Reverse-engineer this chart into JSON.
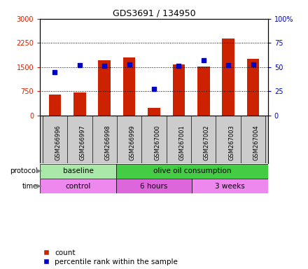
{
  "title": "GDS3691 / 134950",
  "samples": [
    "GSM266996",
    "GSM266997",
    "GSM266998",
    "GSM266999",
    "GSM267000",
    "GSM267001",
    "GSM267002",
    "GSM267003",
    "GSM267004"
  ],
  "counts": [
    650,
    720,
    1720,
    1800,
    230,
    1580,
    1520,
    2380,
    1750
  ],
  "percentile_ranks": [
    45,
    52,
    51,
    53,
    27,
    51,
    57,
    52,
    53
  ],
  "count_color": "#cc2200",
  "percentile_color": "#0000cc",
  "ylim_left": [
    0,
    3000
  ],
  "ylim_right": [
    0,
    100
  ],
  "yticks_left": [
    0,
    750,
    1500,
    2250,
    3000
  ],
  "ytick_labels_left": [
    "0",
    "750",
    "1500",
    "2250",
    "3000"
  ],
  "yticks_right": [
    0,
    25,
    50,
    75,
    100
  ],
  "ytick_labels_right": [
    "0",
    "25",
    "50",
    "75",
    "100%"
  ],
  "protocol_groups": [
    {
      "label": "baseline",
      "start": 0,
      "end": 3,
      "color": "#aae8aa"
    },
    {
      "label": "olive oil consumption",
      "start": 3,
      "end": 9,
      "color": "#44cc44"
    }
  ],
  "time_groups": [
    {
      "label": "control",
      "start": 0,
      "end": 3,
      "color": "#ee88ee"
    },
    {
      "label": "6 hours",
      "start": 3,
      "end": 6,
      "color": "#dd66dd"
    },
    {
      "label": "3 weeks",
      "start": 6,
      "end": 9,
      "color": "#ee88ee"
    }
  ],
  "legend_count_label": "count",
  "legend_percentile_label": "percentile rank within the sample",
  "bar_width": 0.5,
  "grid_color": "#000000",
  "label_bg_color": "#cccccc",
  "background_color": "#ffffff"
}
